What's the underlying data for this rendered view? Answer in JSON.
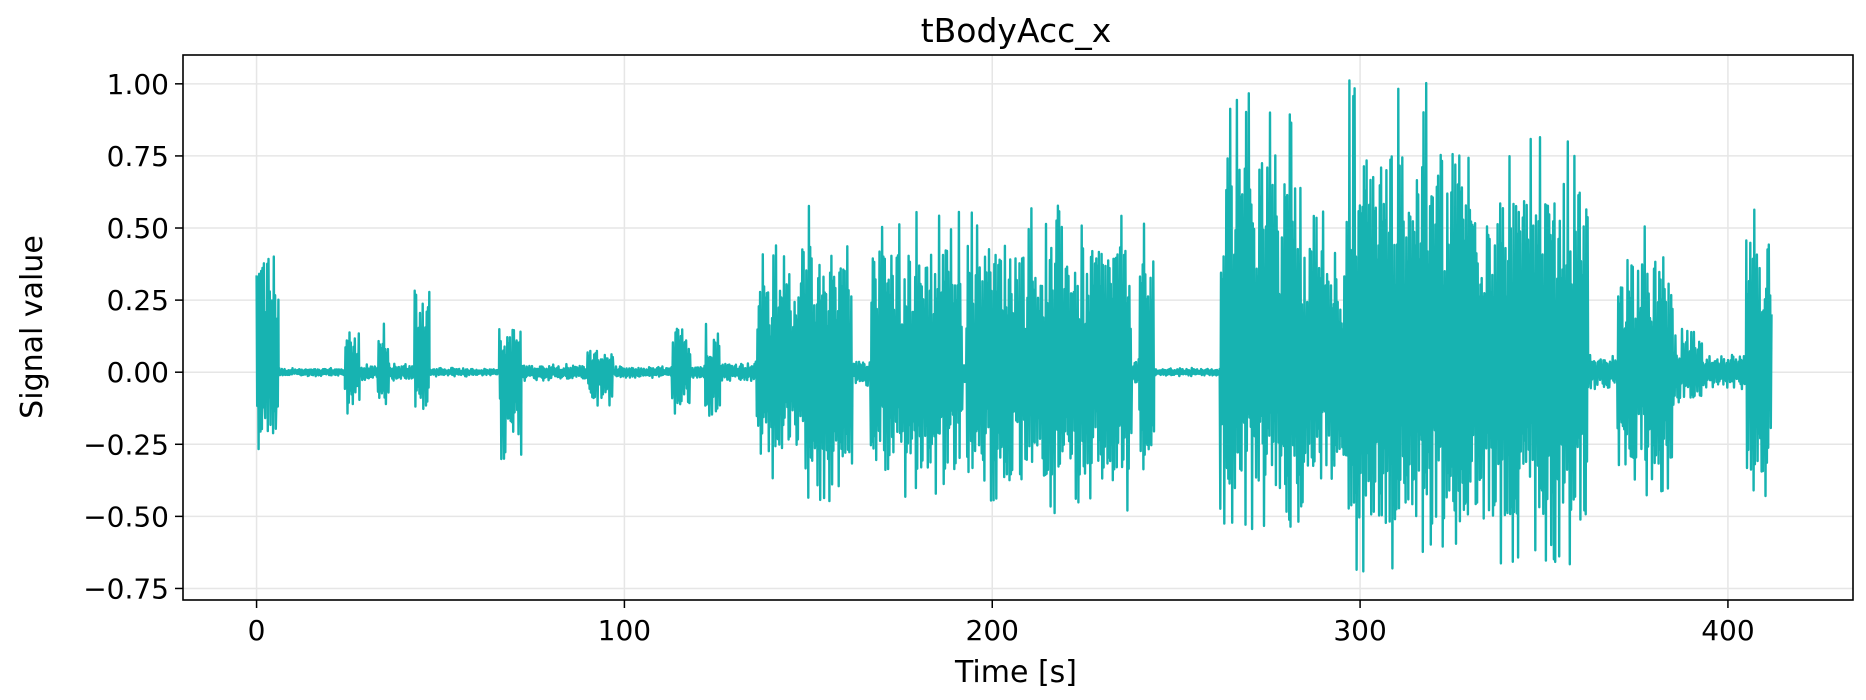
{
  "chart_data": {
    "type": "line",
    "title": "tBodyAcc_x",
    "xlabel": "Time [s]",
    "ylabel": "Signal value",
    "xlim": [
      -20,
      434
    ],
    "ylim": [
      -0.79,
      1.1
    ],
    "xticks": [
      0,
      100,
      200,
      300,
      400
    ],
    "xtick_labels": [
      "0",
      "100",
      "200",
      "300",
      "400"
    ],
    "yticks": [
      -0.75,
      -0.5,
      -0.25,
      0.0,
      0.25,
      0.5,
      0.75,
      1.0
    ],
    "ytick_labels": [
      "−0.75",
      "−0.50",
      "−0.25",
      "0.00",
      "0.25",
      "0.50",
      "0.75",
      "1.00"
    ],
    "grid": true,
    "series": [
      {
        "color": "#17b3b1",
        "segments": [
          {
            "x0": 0,
            "x1": 6,
            "amp_pos": 0.55,
            "amp_neg": 0.28
          },
          {
            "x0": 6,
            "x1": 24,
            "amp_pos": 0.015,
            "amp_neg": 0.015
          },
          {
            "x0": 24,
            "x1": 28,
            "amp_pos": 0.2,
            "amp_neg": 0.15
          },
          {
            "x0": 28,
            "x1": 33,
            "amp_pos": 0.03,
            "amp_neg": 0.03
          },
          {
            "x0": 33,
            "x1": 36,
            "amp_pos": 0.17,
            "amp_neg": 0.15
          },
          {
            "x0": 36,
            "x1": 43,
            "amp_pos": 0.03,
            "amp_neg": 0.03
          },
          {
            "x0": 43,
            "x1": 47,
            "amp_pos": 0.4,
            "amp_neg": 0.17
          },
          {
            "x0": 47,
            "x1": 66,
            "amp_pos": 0.015,
            "amp_neg": 0.015
          },
          {
            "x0": 66,
            "x1": 72,
            "amp_pos": 0.2,
            "amp_neg": 0.31
          },
          {
            "x0": 72,
            "x1": 90,
            "amp_pos": 0.03,
            "amp_neg": 0.03
          },
          {
            "x0": 90,
            "x1": 97,
            "amp_pos": 0.1,
            "amp_neg": 0.12
          },
          {
            "x0": 97,
            "x1": 113,
            "amp_pos": 0.02,
            "amp_neg": 0.02
          },
          {
            "x0": 113,
            "x1": 118,
            "amp_pos": 0.2,
            "amp_neg": 0.15
          },
          {
            "x0": 118,
            "x1": 122,
            "amp_pos": 0.03,
            "amp_neg": 0.03
          },
          {
            "x0": 122,
            "x1": 126,
            "amp_pos": 0.18,
            "amp_neg": 0.2
          },
          {
            "x0": 126,
            "x1": 136,
            "amp_pos": 0.04,
            "amp_neg": 0.04
          },
          {
            "x0": 136,
            "x1": 148,
            "amp_pos": 0.45,
            "amp_neg": 0.38
          },
          {
            "x0": 148,
            "x1": 162,
            "amp_pos": 0.58,
            "amp_neg": 0.45
          },
          {
            "x0": 162,
            "x1": 167,
            "amp_pos": 0.05,
            "amp_neg": 0.05
          },
          {
            "x0": 167,
            "x1": 192,
            "amp_pos": 0.56,
            "amp_neg": 0.45
          },
          {
            "x0": 192,
            "x1": 193,
            "amp_pos": 0.05,
            "amp_neg": 0.05
          },
          {
            "x0": 193,
            "x1": 238,
            "amp_pos": 0.58,
            "amp_neg": 0.5
          },
          {
            "x0": 238,
            "x1": 240,
            "amp_pos": 0.05,
            "amp_neg": 0.05
          },
          {
            "x0": 240,
            "x1": 244,
            "amp_pos": 0.53,
            "amp_neg": 0.45
          },
          {
            "x0": 244,
            "x1": 262,
            "amp_pos": 0.015,
            "amp_neg": 0.015
          },
          {
            "x0": 262,
            "x1": 284,
            "amp_pos": 1.0,
            "amp_neg": 0.55
          },
          {
            "x0": 284,
            "x1": 296,
            "amp_pos": 0.58,
            "amp_neg": 0.5
          },
          {
            "x0": 296,
            "x1": 330,
            "amp_pos": 1.02,
            "amp_neg": 0.7
          },
          {
            "x0": 330,
            "x1": 362,
            "amp_pos": 0.87,
            "amp_neg": 0.68
          },
          {
            "x0": 362,
            "x1": 370,
            "amp_pos": 0.06,
            "amp_neg": 0.06
          },
          {
            "x0": 370,
            "x1": 385,
            "amp_pos": 0.55,
            "amp_neg": 0.43
          },
          {
            "x0": 385,
            "x1": 393,
            "amp_pos": 0.15,
            "amp_neg": 0.12
          },
          {
            "x0": 393,
            "x1": 405,
            "amp_pos": 0.06,
            "amp_neg": 0.06
          },
          {
            "x0": 405,
            "x1": 412,
            "amp_pos": 0.62,
            "amp_neg": 0.46
          }
        ]
      }
    ]
  }
}
